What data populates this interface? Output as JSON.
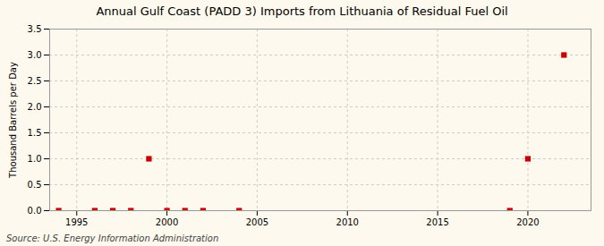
{
  "chart_data": {
    "type": "scatter",
    "title": "Annual Gulf Coast (PADD 3) Imports from Lithuania of Residual Fuel Oil",
    "ylabel": "Thousand Barrels per Day",
    "source": "Source: U.S. Energy Information Administration",
    "x": [
      1994,
      1996,
      1997,
      1998,
      1999,
      2000,
      2001,
      2002,
      2004,
      2019,
      2020,
      2022
    ],
    "values": [
      0.0,
      0.0,
      0.0,
      0.0,
      1.0,
      0.0,
      0.0,
      0.0,
      0.0,
      0.0,
      1.0,
      3.0
    ],
    "color": "#cc0000",
    "marker": "square",
    "xlim": [
      1993.5,
      2023.5
    ],
    "ylim": [
      0,
      3.5
    ],
    "xticks": [
      1995,
      2000,
      2005,
      2010,
      2015,
      2020
    ],
    "yticks": [
      {
        "value": 0.0,
        "label": "0.0"
      },
      0.5,
      {
        "value": 1.0,
        "label": "1.0"
      },
      1.5,
      {
        "value": 2.0,
        "label": "2.0"
      },
      2.5,
      {
        "value": 3.0,
        "label": "3.0"
      },
      3.5
    ],
    "grid": true
  }
}
